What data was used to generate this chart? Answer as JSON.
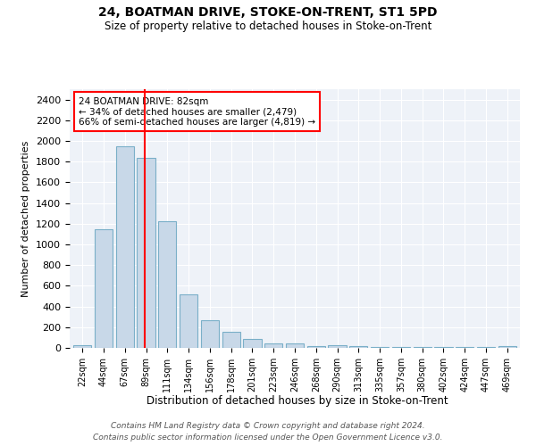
{
  "title": "24, BOATMAN DRIVE, STOKE-ON-TRENT, ST1 5PD",
  "subtitle": "Size of property relative to detached houses in Stoke-on-Trent",
  "xlabel": "Distribution of detached houses by size in Stoke-on-Trent",
  "ylabel": "Number of detached properties",
  "bar_labels": [
    "22sqm",
    "44sqm",
    "67sqm",
    "89sqm",
    "111sqm",
    "134sqm",
    "156sqm",
    "178sqm",
    "201sqm",
    "223sqm",
    "246sqm",
    "268sqm",
    "290sqm",
    "313sqm",
    "335sqm",
    "357sqm",
    "380sqm",
    "402sqm",
    "424sqm",
    "447sqm",
    "469sqm"
  ],
  "bar_values": [
    30,
    1150,
    1950,
    1840,
    1220,
    520,
    270,
    155,
    85,
    45,
    40,
    15,
    25,
    15,
    10,
    5,
    5,
    5,
    5,
    5,
    20
  ],
  "bar_color": "#c8d8e8",
  "bar_edgecolor": "#7aafc8",
  "vline_x": 3,
  "vline_color": "red",
  "annotation_text": "24 BOATMAN DRIVE: 82sqm\n← 34% of detached houses are smaller (2,479)\n66% of semi-detached houses are larger (4,819) →",
  "annotation_box_color": "white",
  "annotation_box_edgecolor": "red",
  "ylim": [
    0,
    2500
  ],
  "yticks": [
    0,
    200,
    400,
    600,
    800,
    1000,
    1200,
    1400,
    1600,
    1800,
    2000,
    2200,
    2400
  ],
  "bg_color": "#eef2f8",
  "footnote": "Contains HM Land Registry data © Crown copyright and database right 2024.\nContains public sector information licensed under the Open Government Licence v3.0."
}
